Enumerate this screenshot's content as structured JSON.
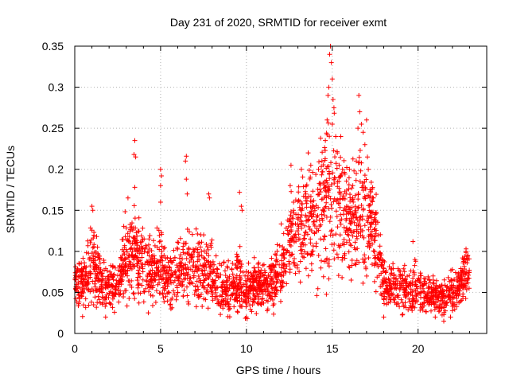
{
  "chart_data": {
    "type": "scatter",
    "title": "Day 231 of 2020, SRMTID for receiver exmt",
    "xlabel": "GPS time / hours",
    "ylabel": "SRMTID / TECUs",
    "xlim": [
      0,
      24
    ],
    "ylim": [
      0,
      0.35
    ],
    "x_ticks": [
      0,
      5,
      10,
      15,
      20
    ],
    "x_tick_labels": [
      "0",
      "5",
      "10",
      "15",
      "20"
    ],
    "y_ticks": [
      0,
      0.05,
      0.1,
      0.15,
      0.2,
      0.25,
      0.3,
      0.35
    ],
    "y_tick_labels": [
      "0",
      "0.05",
      "0.1",
      "0.15",
      "0.2",
      "0.25",
      "0.3",
      "0.35"
    ],
    "grid": true,
    "marker": "+",
    "color": "#ff0000",
    "envelope": {
      "hours": [
        0,
        0.5,
        1,
        1.5,
        2,
        2.5,
        3,
        3.5,
        4,
        4.5,
        5,
        5.5,
        6,
        6.5,
        7,
        7.5,
        8,
        8.5,
        9,
        9.5,
        10,
        10.5,
        11,
        11.5,
        12,
        12.5,
        13,
        13.5,
        14,
        14.5,
        15,
        15.5,
        16,
        16.5,
        17,
        17.5,
        18,
        18.5,
        19,
        19.5,
        20,
        20.5,
        21,
        21.5,
        22,
        22.5,
        23
      ],
      "median": [
        0.058,
        0.062,
        0.085,
        0.07,
        0.055,
        0.065,
        0.09,
        0.1,
        0.085,
        0.075,
        0.085,
        0.07,
        0.07,
        0.08,
        0.085,
        0.08,
        0.07,
        0.055,
        0.055,
        0.065,
        0.05,
        0.06,
        0.055,
        0.06,
        0.08,
        0.11,
        0.125,
        0.13,
        0.145,
        0.16,
        0.17,
        0.15,
        0.14,
        0.14,
        0.145,
        0.12,
        0.065,
        0.055,
        0.055,
        0.05,
        0.055,
        0.05,
        0.045,
        0.045,
        0.05,
        0.065,
        0.075
      ],
      "spread": [
        0.018,
        0.022,
        0.035,
        0.025,
        0.02,
        0.022,
        0.035,
        0.04,
        0.03,
        0.028,
        0.03,
        0.025,
        0.025,
        0.03,
        0.03,
        0.03,
        0.025,
        0.02,
        0.022,
        0.025,
        0.02,
        0.02,
        0.018,
        0.02,
        0.03,
        0.035,
        0.04,
        0.045,
        0.045,
        0.06,
        0.07,
        0.05,
        0.045,
        0.055,
        0.05,
        0.04,
        0.02,
        0.018,
        0.02,
        0.018,
        0.02,
        0.018,
        0.016,
        0.018,
        0.018,
        0.02,
        0.02
      ]
    },
    "spikes": [
      {
        "x": 3.5,
        "y": 0.235
      },
      {
        "x": 3.45,
        "y": 0.218
      },
      {
        "x": 3.55,
        "y": 0.215
      },
      {
        "x": 3.5,
        "y": 0.178
      },
      {
        "x": 5.0,
        "y": 0.2
      },
      {
        "x": 5.05,
        "y": 0.192
      },
      {
        "x": 5.0,
        "y": 0.16
      },
      {
        "x": 5.0,
        "y": 0.18
      },
      {
        "x": 6.5,
        "y": 0.216
      },
      {
        "x": 6.45,
        "y": 0.21
      },
      {
        "x": 6.5,
        "y": 0.188
      },
      {
        "x": 6.55,
        "y": 0.17
      },
      {
        "x": 7.8,
        "y": 0.17
      },
      {
        "x": 7.85,
        "y": 0.165
      },
      {
        "x": 9.6,
        "y": 0.172
      },
      {
        "x": 9.7,
        "y": 0.155
      },
      {
        "x": 9.75,
        "y": 0.15
      },
      {
        "x": 1.0,
        "y": 0.155
      },
      {
        "x": 1.05,
        "y": 0.15
      },
      {
        "x": 3.1,
        "y": 0.165
      },
      {
        "x": 12.6,
        "y": 0.205
      },
      {
        "x": 12.55,
        "y": 0.18
      },
      {
        "x": 13.2,
        "y": 0.2
      },
      {
        "x": 13.6,
        "y": 0.22
      },
      {
        "x": 13.75,
        "y": 0.205
      },
      {
        "x": 14.2,
        "y": 0.2
      },
      {
        "x": 14.4,
        "y": 0.21
      },
      {
        "x": 14.6,
        "y": 0.235
      },
      {
        "x": 14.7,
        "y": 0.26
      },
      {
        "x": 14.75,
        "y": 0.29
      },
      {
        "x": 14.8,
        "y": 0.3
      },
      {
        "x": 14.85,
        "y": 0.34
      },
      {
        "x": 14.9,
        "y": 0.35
      },
      {
        "x": 14.95,
        "y": 0.33
      },
      {
        "x": 15.0,
        "y": 0.31
      },
      {
        "x": 15.05,
        "y": 0.285
      },
      {
        "x": 15.1,
        "y": 0.275
      },
      {
        "x": 15.0,
        "y": 0.255
      },
      {
        "x": 15.2,
        "y": 0.24
      },
      {
        "x": 15.3,
        "y": 0.22
      },
      {
        "x": 15.4,
        "y": 0.205
      },
      {
        "x": 15.5,
        "y": 0.24
      },
      {
        "x": 15.6,
        "y": 0.2
      },
      {
        "x": 16.2,
        "y": 0.18
      },
      {
        "x": 16.4,
        "y": 0.21
      },
      {
        "x": 16.5,
        "y": 0.25
      },
      {
        "x": 16.55,
        "y": 0.29
      },
      {
        "x": 16.6,
        "y": 0.27
      },
      {
        "x": 16.7,
        "y": 0.255
      },
      {
        "x": 16.8,
        "y": 0.245
      },
      {
        "x": 16.9,
        "y": 0.23
      },
      {
        "x": 17.0,
        "y": 0.26
      },
      {
        "x": 17.05,
        "y": 0.215
      },
      {
        "x": 17.1,
        "y": 0.2
      },
      {
        "x": 17.2,
        "y": 0.175
      },
      {
        "x": 17.4,
        "y": 0.165
      },
      {
        "x": 17.5,
        "y": 0.145
      },
      {
        "x": 16.0,
        "y": 0.08
      },
      {
        "x": 16.1,
        "y": 0.065
      },
      {
        "x": 18.0,
        "y": 0.02
      },
      {
        "x": 19.7,
        "y": 0.112
      },
      {
        "x": 21.5,
        "y": 0.015
      },
      {
        "x": 21.0,
        "y": 0.02
      },
      {
        "x": 22.8,
        "y": 0.1
      },
      {
        "x": 22.9,
        "y": 0.095
      },
      {
        "x": 10.0,
        "y": 0.02
      },
      {
        "x": 1.8,
        "y": 0.02
      },
      {
        "x": 5.6,
        "y": 0.03
      }
    ]
  }
}
